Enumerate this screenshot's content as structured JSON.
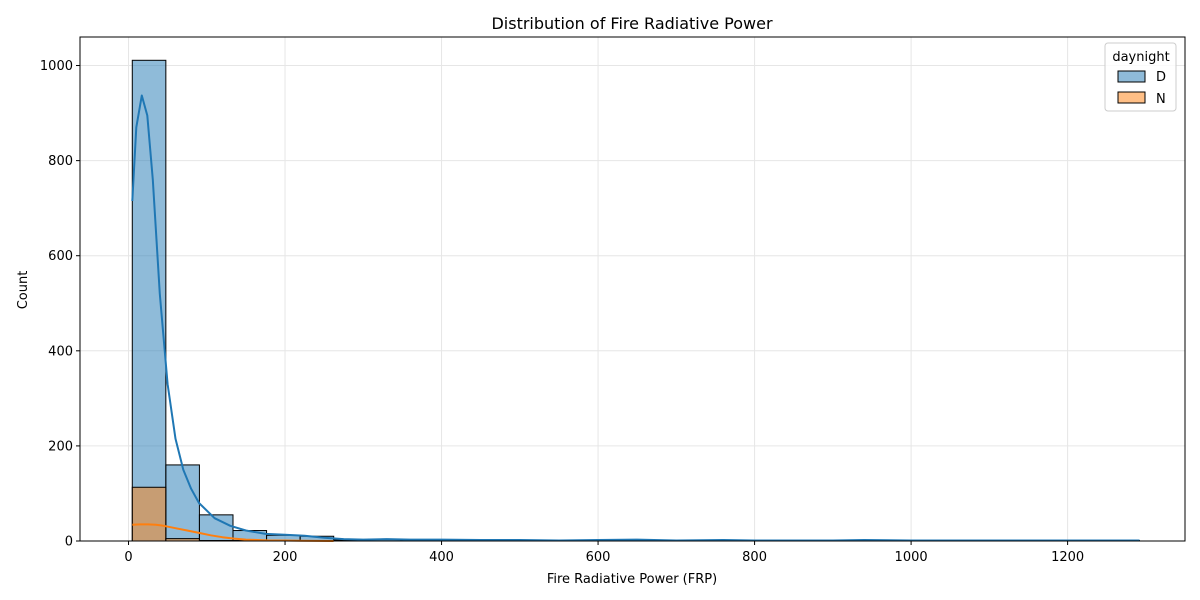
{
  "chart_data": {
    "type": "bar",
    "title": "Distribution of Fire Radiative Power",
    "xlabel": "Fire Radiative Power (FRP)",
    "ylabel": "Count",
    "xlim": [
      -62,
      1350
    ],
    "ylim": [
      0,
      1060
    ],
    "xticks": [
      0,
      200,
      400,
      600,
      800,
      1000,
      1200
    ],
    "yticks": [
      0,
      200,
      400,
      600,
      800,
      1000
    ],
    "grid": true,
    "legend": {
      "title": "daynight",
      "placement": "top-right"
    },
    "bin_edges": [
      4.8,
      47.7,
      90.6,
      133.5,
      176.4,
      219.3,
      262.2,
      305.1,
      348.0,
      390.9,
      433.8,
      476.7,
      519.6,
      562.5,
      605.4,
      648.3,
      691.2,
      734.1,
      777.0,
      819.9,
      862.8,
      905.7,
      948.6,
      991.5,
      1034.4,
      1077.3,
      1120.2,
      1163.1,
      1206.0,
      1248.9,
      1291.8
    ],
    "series": [
      {
        "name": "D",
        "color": "#1f77b4",
        "values": [
          1011,
          160,
          55,
          22,
          12,
          10,
          2,
          3,
          2,
          1,
          1,
          1,
          1,
          0,
          1,
          1,
          0,
          0,
          1,
          0,
          0,
          0,
          1,
          0,
          0,
          0,
          0,
          0,
          0,
          1
        ],
        "kde_x": [
          4.8,
          10,
          17,
          24,
          31,
          40,
          50,
          60,
          70,
          80,
          90,
          110,
          130,
          150,
          175,
          200,
          225,
          250,
          275,
          300,
          330,
          360,
          400,
          450,
          500,
          550,
          600,
          650,
          700,
          760,
          800,
          850,
          900,
          940,
          1000,
          1050,
          1100,
          1150,
          1200,
          1250,
          1291.8
        ],
        "kde_y": [
          715,
          870,
          937,
          895,
          760,
          520,
          330,
          215,
          150,
          110,
          80,
          48,
          32,
          22,
          15,
          13,
          11,
          7,
          4,
          3,
          4,
          3,
          3,
          2,
          2,
          1,
          2,
          3,
          1,
          2,
          1,
          1,
          1,
          2,
          1,
          1,
          1,
          1,
          1,
          1,
          1
        ]
      },
      {
        "name": "N",
        "color": "#ff7f0e",
        "values": [
          113,
          5,
          1,
          1,
          1,
          1,
          0,
          0,
          0,
          0,
          0,
          0,
          0,
          0,
          0,
          0,
          0,
          0,
          0,
          0,
          0,
          0,
          0,
          0,
          0,
          0,
          0,
          0,
          0,
          0
        ],
        "kde_x": [
          4.8,
          15,
          25,
          35,
          45,
          60,
          75,
          90,
          105,
          120,
          135,
          150,
          165,
          180,
          200,
          220,
          240,
          262
        ],
        "kde_y": [
          34,
          35,
          35,
          34,
          32,
          27,
          22,
          17,
          12,
          8,
          5,
          3,
          2,
          1,
          1,
          0.5,
          0.3,
          0.1
        ]
      }
    ]
  }
}
